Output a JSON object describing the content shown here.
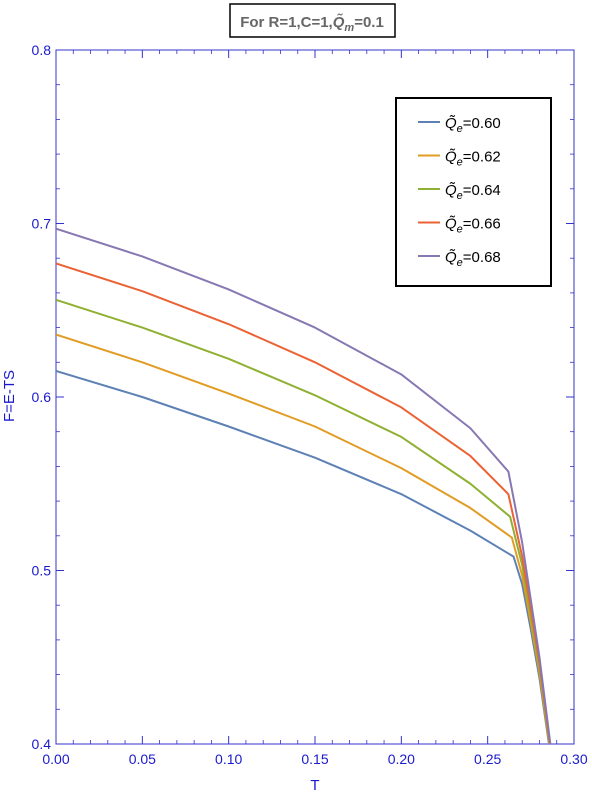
{
  "chart_data": {
    "type": "line",
    "title": "For R=1,C=1,Q̃m=0.1",
    "title_parts": {
      "prefix": "For R=1,C=1,",
      "symbol": "Q̃",
      "subscript": "m",
      "suffix": "=0.1"
    },
    "xlabel": "T",
    "ylabel": "F=E-TS",
    "xlim": [
      0,
      0.3
    ],
    "ylim": [
      0.4,
      0.8
    ],
    "x_ticks": [
      "0.00",
      "0.05",
      "0.10",
      "0.15",
      "0.20",
      "0.25",
      "0.30"
    ],
    "y_ticks": [
      "0.4",
      "0.5",
      "0.6",
      "0.7",
      "0.8"
    ],
    "grid": false,
    "legend_position": "top-right",
    "series": [
      {
        "name": "Q̃e=0.60",
        "label_value": "=0.60",
        "color": "#5E81B5",
        "points": [
          [
            0,
            0.615
          ],
          [
            0.05,
            0.6
          ],
          [
            0.1,
            0.583
          ],
          [
            0.15,
            0.565
          ],
          [
            0.2,
            0.544
          ],
          [
            0.24,
            0.523
          ],
          [
            0.265,
            0.508
          ],
          [
            0.27,
            0.492
          ],
          [
            0.275,
            0.466
          ],
          [
            0.28,
            0.438
          ],
          [
            0.2855,
            0.4
          ]
        ]
      },
      {
        "name": "Q̃e=0.62",
        "label_value": "=0.62",
        "color": "#E19C24",
        "points": [
          [
            0,
            0.636
          ],
          [
            0.05,
            0.62
          ],
          [
            0.1,
            0.602
          ],
          [
            0.15,
            0.583
          ],
          [
            0.2,
            0.559
          ],
          [
            0.24,
            0.536
          ],
          [
            0.264,
            0.519
          ],
          [
            0.27,
            0.497
          ],
          [
            0.275,
            0.47
          ],
          [
            0.28,
            0.441
          ],
          [
            0.2857,
            0.4
          ]
        ]
      },
      {
        "name": "Q̃e=0.64",
        "label_value": "=0.64",
        "color": "#8FB032",
        "points": [
          [
            0,
            0.656
          ],
          [
            0.05,
            0.64
          ],
          [
            0.1,
            0.622
          ],
          [
            0.15,
            0.601
          ],
          [
            0.2,
            0.577
          ],
          [
            0.24,
            0.55
          ],
          [
            0.263,
            0.531
          ],
          [
            0.27,
            0.503
          ],
          [
            0.275,
            0.474
          ],
          [
            0.28,
            0.444
          ],
          [
            0.2859,
            0.4
          ]
        ]
      },
      {
        "name": "Q̃e=0.66",
        "label_value": "=0.66",
        "color": "#EB6235",
        "points": [
          [
            0,
            0.677
          ],
          [
            0.05,
            0.661
          ],
          [
            0.1,
            0.642
          ],
          [
            0.15,
            0.62
          ],
          [
            0.2,
            0.594
          ],
          [
            0.24,
            0.566
          ],
          [
            0.262,
            0.544
          ],
          [
            0.27,
            0.508
          ],
          [
            0.275,
            0.478
          ],
          [
            0.28,
            0.447
          ],
          [
            0.2861,
            0.4
          ]
        ]
      },
      {
        "name": "Q̃e=0.68",
        "label_value": "=0.68",
        "color": "#8778B3",
        "points": [
          [
            0,
            0.697
          ],
          [
            0.05,
            0.681
          ],
          [
            0.1,
            0.662
          ],
          [
            0.15,
            0.64
          ],
          [
            0.2,
            0.613
          ],
          [
            0.24,
            0.582
          ],
          [
            0.262,
            0.557
          ],
          [
            0.27,
            0.516
          ],
          [
            0.275,
            0.483
          ],
          [
            0.28,
            0.45
          ],
          [
            0.2863,
            0.4
          ]
        ]
      }
    ]
  }
}
